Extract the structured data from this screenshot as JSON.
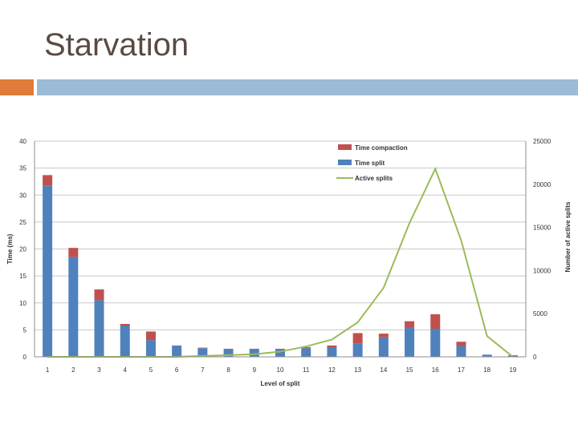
{
  "slide": {
    "title": "Starvation"
  },
  "colors": {
    "orange_accent": "#e07b39",
    "blue_accent": "#9bbbd6",
    "time_split": "#4f81bd",
    "time_compaction": "#c0504d",
    "active_splits": "#9bbb59"
  },
  "chart_data": {
    "type": "bar",
    "stacked": true,
    "categories": [
      "1",
      "2",
      "3",
      "4",
      "5",
      "6",
      "7",
      "8",
      "9",
      "10",
      "11",
      "12",
      "13",
      "14",
      "15",
      "16",
      "17",
      "18",
      "19"
    ],
    "series": [
      {
        "name": "Time split",
        "kind": "bar",
        "axis": "left",
        "values": [
          31.8,
          18.5,
          10.5,
          5.8,
          3.1,
          2.1,
          1.6,
          1.4,
          1.4,
          1.4,
          1.6,
          1.7,
          2.5,
          3.6,
          5.5,
          5.2,
          2.0,
          0.4,
          0.2
        ]
      },
      {
        "name": "Time compaction",
        "kind": "bar",
        "axis": "left",
        "values": [
          1.9,
          1.7,
          2.0,
          0.3,
          1.6,
          0.0,
          0.1,
          0.1,
          0.1,
          0.1,
          0.2,
          0.4,
          1.9,
          0.7,
          1.1,
          2.7,
          0.8,
          0.0,
          0.1
        ]
      },
      {
        "name": "Active splits",
        "kind": "line",
        "axis": "right",
        "values": [
          0,
          0,
          0,
          0,
          0,
          0,
          100,
          200,
          300,
          600,
          1200,
          2000,
          4000,
          8000,
          15500,
          21800,
          13500,
          2400,
          0
        ]
      }
    ],
    "xlabel": "Level of split",
    "ylabel": "Time (ms)",
    "y2label": "Number of active splits",
    "ylim": [
      0,
      40
    ],
    "y2lim": [
      0,
      25000
    ],
    "yticks": [
      "0",
      "5",
      "10",
      "15",
      "20",
      "25",
      "30",
      "35",
      "40"
    ],
    "y2ticks": [
      "0",
      "5000",
      "10000",
      "15000",
      "20000",
      "25000"
    ],
    "legend_labels": [
      "Time compaction",
      "Time split",
      "Active splits"
    ],
    "legend_position": "top-right",
    "grid": true
  }
}
